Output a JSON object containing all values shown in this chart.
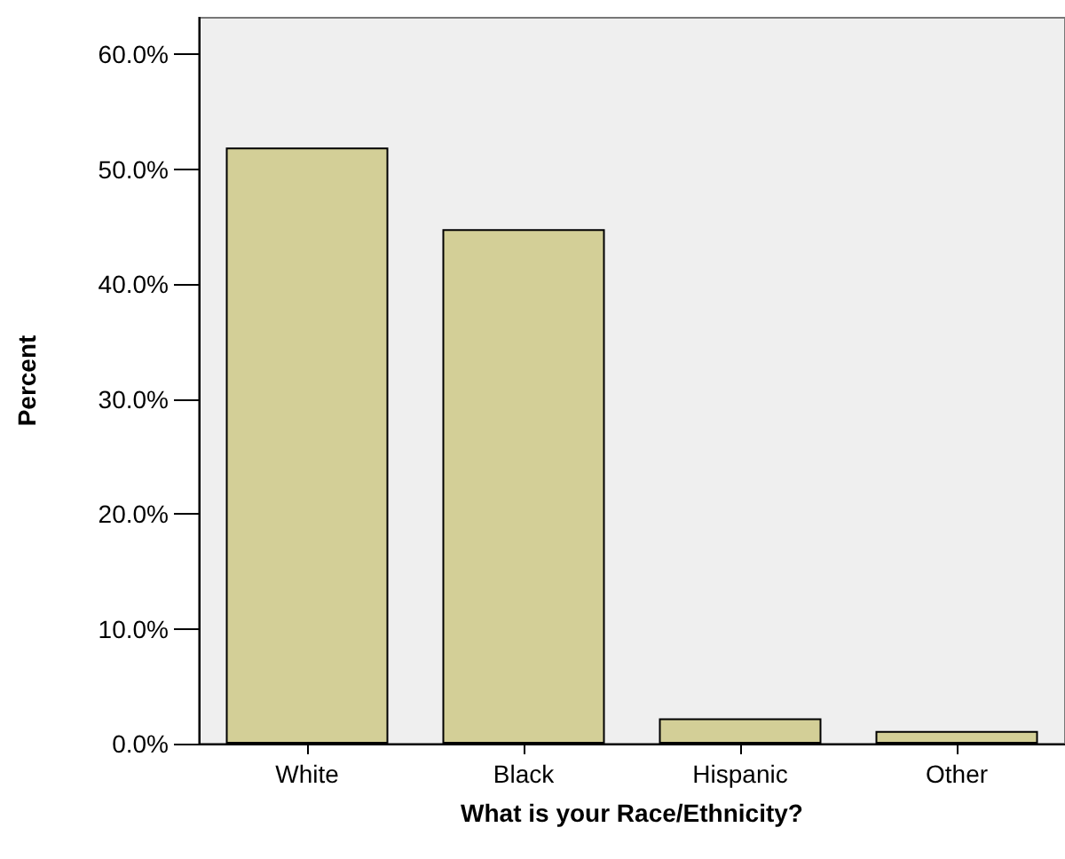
{
  "chart_data": {
    "type": "bar",
    "xlabel": "What is your Race/Ethnicity?",
    "ylabel": "Percent",
    "categories": [
      "White",
      "Black",
      "Hispanic",
      "Other"
    ],
    "values": [
      51.9,
      44.8,
      2.2,
      1.1
    ],
    "color": "#d3cf97",
    "ylim": [
      0,
      63.2
    ],
    "yticks": [
      {
        "value": 0,
        "label": "0.0%"
      },
      {
        "value": 10,
        "label": "10.0%"
      },
      {
        "value": 20,
        "label": "20.0%"
      },
      {
        "value": 30,
        "label": "30.0%"
      },
      {
        "value": 40,
        "label": "40.0%"
      },
      {
        "value": 50,
        "label": "50.0%"
      },
      {
        "value": 60,
        "label": "60.0%"
      }
    ],
    "grid": false
  }
}
